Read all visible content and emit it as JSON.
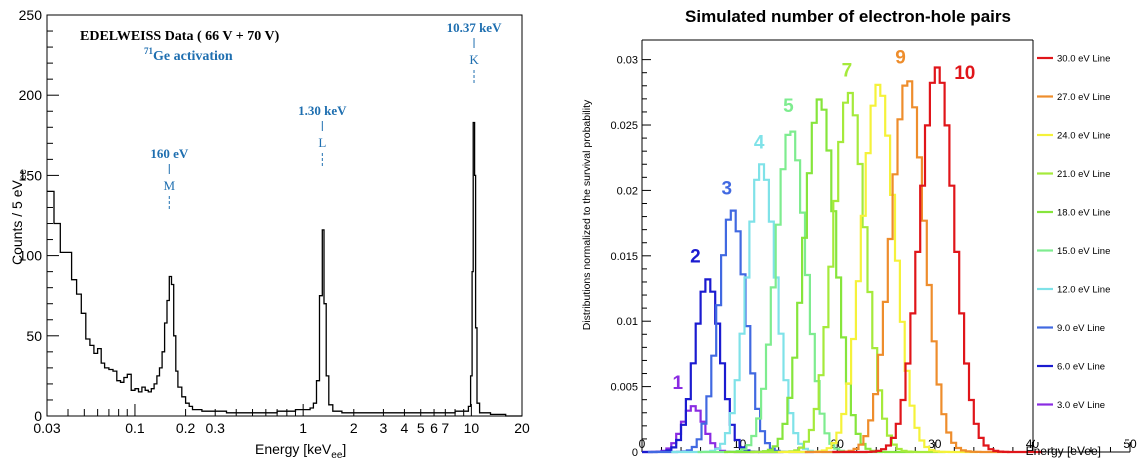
{
  "chart_data": [
    {
      "type": "line",
      "title": "EDELWEISS Data ( 66 V + 70 V)",
      "subtitle_sup": "71",
      "subtitle": "Ge activation",
      "xlabel": "Energy [keV",
      "xlabel_sub": "ee",
      "xlabel_close": "]",
      "ylabel": "Counts / 5 eV",
      "ylabel_sub": "ee",
      "xscale": "log",
      "xlim": [
        0.03,
        20
      ],
      "ylim": [
        0,
        250
      ],
      "xtick_labels": [
        {
          "v": 0.03,
          "label": "0.03"
        },
        {
          "v": 0.1,
          "label": "0.1"
        },
        {
          "v": 0.2,
          "label": "0.2"
        },
        {
          "v": 0.3,
          "label": "0.3"
        },
        {
          "v": 1,
          "label": "1"
        },
        {
          "v": 2,
          "label": "2"
        },
        {
          "v": 3,
          "label": "3"
        },
        {
          "v": 4,
          "label": "4"
        },
        {
          "v": 5,
          "label": "5"
        },
        {
          "v": 6,
          "label": "6"
        },
        {
          "v": 7,
          "label": "7"
        },
        {
          "v": 10,
          "label": "10"
        },
        {
          "v": 20,
          "label": "20"
        }
      ],
      "ytick_labels": [
        "0",
        "50",
        "100",
        "150",
        "200",
        "250"
      ],
      "yticks": [
        0,
        50,
        100,
        150,
        200,
        250
      ],
      "peaks": [
        {
          "energy_label": "160 eV",
          "shell": "M",
          "x": 0.16,
          "peak": 87
        },
        {
          "energy_label": "1.30 keV",
          "shell": "L",
          "x": 1.3,
          "peak": 116
        },
        {
          "energy_label": "10.37 keV",
          "shell": "K",
          "x": 10.37,
          "peak": 183
        }
      ],
      "spectrum": [
        [
          0.03,
          140
        ],
        [
          0.033,
          120
        ],
        [
          0.036,
          102
        ],
        [
          0.039,
          102
        ],
        [
          0.042,
          85
        ],
        [
          0.045,
          76
        ],
        [
          0.048,
          64
        ],
        [
          0.051,
          48
        ],
        [
          0.054,
          44
        ],
        [
          0.057,
          39
        ],
        [
          0.06,
          42
        ],
        [
          0.063,
          33
        ],
        [
          0.066,
          30
        ],
        [
          0.07,
          29
        ],
        [
          0.074,
          28
        ],
        [
          0.078,
          22
        ],
        [
          0.082,
          21
        ],
        [
          0.086,
          24
        ],
        [
          0.09,
          26
        ],
        [
          0.095,
          16
        ],
        [
          0.1,
          17
        ],
        [
          0.105,
          15
        ],
        [
          0.11,
          18
        ],
        [
          0.115,
          16
        ],
        [
          0.12,
          15
        ],
        [
          0.125,
          17
        ],
        [
          0.13,
          20
        ],
        [
          0.135,
          25
        ],
        [
          0.14,
          30
        ],
        [
          0.145,
          40
        ],
        [
          0.15,
          58
        ],
        [
          0.155,
          72
        ],
        [
          0.16,
          87
        ],
        [
          0.165,
          82
        ],
        [
          0.17,
          50
        ],
        [
          0.175,
          28
        ],
        [
          0.18,
          18
        ],
        [
          0.19,
          12
        ],
        [
          0.2,
          8
        ],
        [
          0.21,
          6
        ],
        [
          0.22,
          4
        ],
        [
          0.25,
          3
        ],
        [
          0.3,
          3
        ],
        [
          0.35,
          2
        ],
        [
          0.4,
          2
        ],
        [
          0.5,
          2
        ],
        [
          0.6,
          2
        ],
        [
          0.7,
          3
        ],
        [
          0.8,
          3
        ],
        [
          0.9,
          4
        ],
        [
          1.0,
          4
        ],
        [
          1.1,
          5
        ],
        [
          1.15,
          8
        ],
        [
          1.2,
          22
        ],
        [
          1.25,
          75
        ],
        [
          1.3,
          116
        ],
        [
          1.33,
          70
        ],
        [
          1.37,
          25
        ],
        [
          1.42,
          7
        ],
        [
          1.5,
          3
        ],
        [
          1.7,
          2
        ],
        [
          2.0,
          2
        ],
        [
          3.0,
          2
        ],
        [
          4.0,
          2
        ],
        [
          5.0,
          2
        ],
        [
          6.0,
          2
        ],
        [
          7.0,
          2
        ],
        [
          8.0,
          3
        ],
        [
          9.0,
          3
        ],
        [
          9.6,
          6
        ],
        [
          9.9,
          25
        ],
        [
          10.1,
          90
        ],
        [
          10.25,
          183
        ],
        [
          10.45,
          150
        ],
        [
          10.6,
          55
        ],
        [
          10.8,
          8
        ],
        [
          11.2,
          2
        ],
        [
          13,
          1
        ],
        [
          16,
          0
        ],
        [
          20,
          0
        ]
      ]
    },
    {
      "type": "line",
      "title": "Simulated number of electron-hole pairs",
      "xlabel": "Energy [eVee]",
      "ylabel": "Distributions normalized to the survival probability",
      "xlim": [
        0,
        50
      ],
      "ylim": [
        0,
        0.0315
      ],
      "xtick_labels": [
        "0",
        "10",
        "20",
        "30",
        "40",
        "50"
      ],
      "xticks": [
        0,
        10,
        20,
        30,
        40,
        50
      ],
      "ytick_labels": [
        "0",
        "0.005",
        "0.01",
        "0.015",
        "0.02",
        "0.025",
        "0.03"
      ],
      "yticks": [
        0,
        0.005,
        0.01,
        0.015,
        0.02,
        0.025,
        0.03
      ],
      "legend_position": "right",
      "series": [
        {
          "name": "30.0 eV Line",
          "number_label": "10",
          "center": 30.0,
          "peak": 0.0294,
          "width": 1.75,
          "color": "#e0151a"
        },
        {
          "name": "27.0 eV Line",
          "number_label": "9",
          "center": 27.0,
          "peak": 0.0285,
          "width": 1.72,
          "color": "#ee8d2c"
        },
        {
          "name": "24.0 eV Line",
          "number_label": "",
          "center": 24.0,
          "peak": 0.0281,
          "width": 1.68,
          "color": "#f5f23a"
        },
        {
          "name": "21.0 eV Line",
          "number_label": "7",
          "center": 21.0,
          "peak": 0.0275,
          "width": 1.65,
          "color": "#a5ea3b"
        },
        {
          "name": "18.0 eV Line",
          "number_label": "",
          "center": 18.0,
          "peak": 0.027,
          "width": 1.6,
          "color": "#86e53c"
        },
        {
          "name": "15.0 eV Line",
          "number_label": "5",
          "center": 15.0,
          "peak": 0.0247,
          "width": 1.55,
          "color": "#7eec8f"
        },
        {
          "name": "12.0 eV Line",
          "number_label": "4",
          "center": 12.0,
          "peak": 0.022,
          "width": 1.5,
          "color": "#7fe2e8"
        },
        {
          "name": "9.0 eV Line",
          "number_label": "3",
          "center": 9.0,
          "peak": 0.0185,
          "width": 1.4,
          "color": "#4169e1"
        },
        {
          "name": "6.0 eV Line",
          "number_label": "2",
          "center": 6.5,
          "peak": 0.0132,
          "width": 1.3,
          "color": "#1b1bd0"
        },
        {
          "name": "3.0 eV Line",
          "number_label": "1",
          "center": 5.0,
          "peak": 0.0035,
          "width": 1.1,
          "color": "#8a2be2"
        }
      ]
    }
  ]
}
